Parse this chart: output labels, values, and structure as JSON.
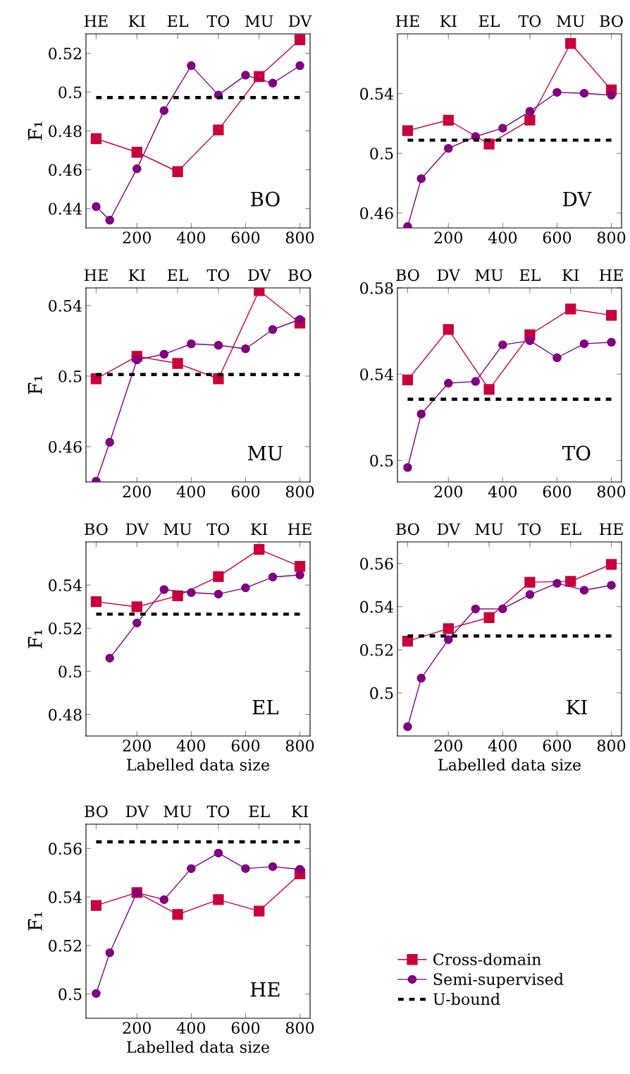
{
  "chart_data": [
    {
      "type": "line",
      "ylabel": "F̄₁",
      "xlim": [
        12.5,
        837.5
      ],
      "xticks": [
        200,
        400,
        600,
        800
      ],
      "ylim": [
        0.43,
        0.53
      ],
      "yticks": [
        0.44,
        0.46,
        0.48,
        0.5,
        0.52
      ],
      "annotations": [
        "BO",
        {
          "text": "HE",
          "x": 50
        },
        {
          "text": "KI",
          "x": 200
        },
        {
          "text": "EL",
          "x": 350
        },
        {
          "text": "TO",
          "x": 500
        },
        {
          "text": "MU",
          "x": 650
        },
        {
          "text": "DV",
          "x": 800
        }
      ],
      "series": [
        {
          "color": "#c8003c",
          "marker": "square",
          "line_style": "solid",
          "x": [
            50,
            200,
            350,
            500,
            650,
            800
          ],
          "values": [
            0.476,
            0.469,
            0.459,
            0.4805,
            0.508,
            0.527
          ]
        },
        {
          "color": "#800080",
          "marker": "circle",
          "line_style": "solid",
          "x": [
            50,
            100,
            200,
            300,
            400,
            500,
            600,
            700,
            800
          ],
          "values": [
            0.441,
            0.434,
            0.4605,
            0.4905,
            0.5136,
            0.4985,
            0.5087,
            0.5046,
            0.5136
          ]
        },
        {
          "color": "#000000",
          "marker": "none",
          "line_style": "dashed",
          "x": [
            50,
            800
          ],
          "values": [
            0.4972,
            0.4972
          ]
        }
      ]
    },
    {
      "type": "line",
      "xlim": [
        12.5,
        837.5
      ],
      "xticks": [
        200,
        400,
        600,
        800
      ],
      "ylim": [
        0.45,
        0.58
      ],
      "yticks": [
        0.46,
        0.5,
        0.54
      ],
      "annotations": [
        "DV",
        {
          "text": "HE",
          "x": 50
        },
        {
          "text": "KI",
          "x": 200
        },
        {
          "text": "EL",
          "x": 350
        },
        {
          "text": "TO",
          "x": 500
        },
        {
          "text": "MU",
          "x": 650
        },
        {
          "text": "BO",
          "x": 800
        }
      ],
      "series": [
        {
          "color": "#c8003c",
          "marker": "square",
          "line_style": "solid",
          "x": [
            50,
            200,
            350,
            500,
            650,
            800
          ],
          "values": [
            0.5152,
            0.5222,
            0.5062,
            0.5223,
            0.5736,
            0.5425
          ]
        },
        {
          "color": "#800080",
          "marker": "circle",
          "line_style": "solid",
          "x": [
            50,
            100,
            200,
            300,
            400,
            500,
            600,
            700,
            800
          ],
          "values": [
            0.4509,
            0.483,
            0.5033,
            0.5112,
            0.5168,
            0.5281,
            0.5408,
            0.5402,
            0.5389
          ]
        },
        {
          "color": "#000000",
          "marker": "none",
          "line_style": "dashed",
          "x": [
            50,
            800
          ],
          "values": [
            0.5088,
            0.5088
          ]
        }
      ]
    },
    {
      "type": "line",
      "ylabel": "F̄₁",
      "xlim": [
        12.5,
        837.5
      ],
      "xticks": [
        200,
        400,
        600,
        800
      ],
      "ylim": [
        0.44,
        0.55
      ],
      "yticks": [
        0.46,
        0.5,
        0.54
      ],
      "annotations": [
        "MU",
        {
          "text": "HE",
          "x": 50
        },
        {
          "text": "KI",
          "x": 200
        },
        {
          "text": "EL",
          "x": 350
        },
        {
          "text": "TO",
          "x": 500
        },
        {
          "text": "DV",
          "x": 650
        },
        {
          "text": "BO",
          "x": 800
        }
      ],
      "series": [
        {
          "color": "#c8003c",
          "marker": "square",
          "line_style": "solid",
          "x": [
            50,
            200,
            350,
            500,
            650,
            800
          ],
          "values": [
            0.4985,
            0.5112,
            0.5072,
            0.4985,
            0.5485,
            0.5301
          ]
        },
        {
          "color": "#800080",
          "marker": "circle",
          "line_style": "solid",
          "x": [
            50,
            100,
            200,
            300,
            400,
            500,
            600,
            700,
            800
          ],
          "values": [
            0.4404,
            0.4625,
            0.5092,
            0.5124,
            0.5183,
            0.5175,
            0.5155,
            0.5264,
            0.5321
          ]
        },
        {
          "color": "#000000",
          "marker": "none",
          "line_style": "dashed",
          "x": [
            50,
            800
          ],
          "values": [
            0.5009,
            0.5009
          ]
        }
      ]
    },
    {
      "type": "line",
      "xlim": [
        12.5,
        837.5
      ],
      "xticks": [
        200,
        400,
        600,
        800
      ],
      "ylim": [
        0.49,
        0.58
      ],
      "yticks": [
        0.5,
        0.54,
        0.58
      ],
      "annotations": [
        "TO",
        {
          "text": "BO",
          "x": 50
        },
        {
          "text": "DV",
          "x": 200
        },
        {
          "text": "MU",
          "x": 350
        },
        {
          "text": "EL",
          "x": 500
        },
        {
          "text": "KI",
          "x": 650
        },
        {
          "text": "HE",
          "x": 800
        }
      ],
      "series": [
        {
          "color": "#c8003c",
          "marker": "square",
          "line_style": "solid",
          "x": [
            50,
            200,
            350,
            500,
            650,
            800
          ],
          "values": [
            0.5373,
            0.5607,
            0.5329,
            0.5583,
            0.5702,
            0.5673
          ]
        },
        {
          "color": "#800080",
          "marker": "circle",
          "line_style": "solid",
          "x": [
            50,
            100,
            200,
            300,
            400,
            500,
            600,
            700,
            800
          ],
          "values": [
            0.4967,
            0.5215,
            0.5358,
            0.5366,
            0.5536,
            0.5555,
            0.5476,
            0.5541,
            0.5548
          ]
        },
        {
          "color": "#000000",
          "marker": "none",
          "line_style": "dashed",
          "x": [
            50,
            800
          ],
          "values": [
            0.5284,
            0.5284
          ]
        }
      ]
    },
    {
      "type": "line",
      "xlabel": "Labelled data size",
      "ylabel": "F̄₁",
      "xlim": [
        12.5,
        837.5
      ],
      "xticks": [
        200,
        400,
        600,
        800
      ],
      "ylim": [
        0.47,
        0.56
      ],
      "yticks": [
        0.48,
        0.5,
        0.52,
        0.54
      ],
      "annotations": [
        "EL",
        {
          "text": "BO",
          "x": 50
        },
        {
          "text": "DV",
          "x": 200
        },
        {
          "text": "MU",
          "x": 350
        },
        {
          "text": "TO",
          "x": 500
        },
        {
          "text": "KI",
          "x": 650
        },
        {
          "text": "HE",
          "x": 800
        }
      ],
      "series": [
        {
          "color": "#c8003c",
          "marker": "square",
          "line_style": "solid",
          "x": [
            50,
            200,
            350,
            500,
            650,
            800
          ],
          "values": [
            0.5323,
            0.5299,
            0.535,
            0.5439,
            0.5565,
            0.5487
          ]
        },
        {
          "color": "#800080",
          "marker": "circle",
          "line_style": "solid",
          "x": [
            100,
            200,
            300,
            400,
            500,
            600,
            700,
            800
          ],
          "values": [
            0.5061,
            0.5224,
            0.5379,
            0.5365,
            0.5358,
            0.5387,
            0.5437,
            0.5447
          ]
        },
        {
          "color": "#000000",
          "marker": "none",
          "line_style": "dashed",
          "x": [
            50,
            800
          ],
          "values": [
            0.5265,
            0.5265
          ]
        }
      ]
    },
    {
      "type": "line",
      "xlabel": "Labelled data size",
      "xlim": [
        12.5,
        837.5
      ],
      "xticks": [
        200,
        400,
        600,
        800
      ],
      "ylim": [
        0.48,
        0.57
      ],
      "yticks": [
        0.5,
        0.52,
        0.54,
        0.56
      ],
      "annotations": [
        "KI",
        {
          "text": "BO",
          "x": 50
        },
        {
          "text": "DV",
          "x": 200
        },
        {
          "text": "MU",
          "x": 350
        },
        {
          "text": "TO",
          "x": 500
        },
        {
          "text": "EL",
          "x": 650
        },
        {
          "text": "HE",
          "x": 800
        }
      ],
      "series": [
        {
          "color": "#c8003c",
          "marker": "square",
          "line_style": "solid",
          "x": [
            50,
            200,
            350,
            500,
            650,
            800
          ],
          "values": [
            0.524,
            0.5298,
            0.5349,
            0.5513,
            0.5517,
            0.5596
          ]
        },
        {
          "color": "#800080",
          "marker": "circle",
          "line_style": "solid",
          "x": [
            50,
            100,
            200,
            300,
            400,
            500,
            600,
            700,
            800
          ],
          "values": [
            0.4843,
            0.5068,
            0.5247,
            0.5389,
            0.539,
            0.5456,
            0.5508,
            0.5476,
            0.5499
          ]
        },
        {
          "color": "#000000",
          "marker": "none",
          "line_style": "dashed",
          "x": [
            50,
            800
          ],
          "values": [
            0.5264,
            0.5264
          ]
        }
      ]
    },
    {
      "type": "line",
      "xlabel": "Labelled data size",
      "ylabel": "F̄₁",
      "legend": "right",
      "xlim": [
        12.5,
        837.5
      ],
      "xticks": [
        200,
        400,
        600,
        800
      ],
      "ylim": [
        0.49,
        0.57
      ],
      "yticks": [
        0.5,
        0.52,
        0.54,
        0.56
      ],
      "annotations": [
        "HE",
        {
          "text": "BO",
          "x": 50
        },
        {
          "text": "DV",
          "x": 200
        },
        {
          "text": "MU",
          "x": 350
        },
        {
          "text": "TO",
          "x": 500
        },
        {
          "text": "EL",
          "x": 650
        },
        {
          "text": "KI",
          "x": 800
        }
      ],
      "series": [
        {
          "name": "Cross-domain",
          "color": "#c8003c",
          "marker": "square",
          "line_style": "solid",
          "x": [
            50,
            200,
            350,
            500,
            650,
            800
          ],
          "values": [
            0.5365,
            0.5418,
            0.5328,
            0.5389,
            0.5342,
            0.5495
          ]
        },
        {
          "name": "Semi-supervised",
          "color": "#800080",
          "marker": "circle",
          "line_style": "solid",
          "x": [
            50,
            100,
            200,
            300,
            400,
            500,
            600,
            700,
            800
          ],
          "values": [
            0.5002,
            0.517,
            0.5418,
            0.5389,
            0.5517,
            0.5581,
            0.5517,
            0.5525,
            0.5514
          ]
        },
        {
          "name": "U-bound",
          "color": "#000000",
          "marker": "none",
          "line_style": "dashed",
          "x": [
            50,
            800
          ],
          "values": [
            0.5627,
            0.5627
          ]
        }
      ]
    }
  ]
}
